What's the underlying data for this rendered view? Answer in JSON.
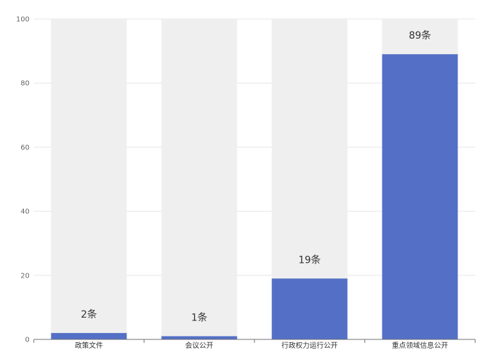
{
  "chart_data": {
    "type": "bar",
    "title": "",
    "xlabel": "",
    "ylabel": "",
    "categories": [
      "政策文件",
      "会议公开",
      "行政权力运行公开",
      "重点领域信息公开"
    ],
    "values": [
      2,
      1,
      19,
      89
    ],
    "data_labels": [
      "2条",
      "1条",
      "19条",
      "89条"
    ],
    "background_values": [
      100,
      100,
      100,
      100
    ],
    "ylim": [
      0,
      100
    ],
    "yticks": [
      "0",
      "20",
      "40",
      "60",
      "80",
      "100"
    ],
    "grid": true,
    "legend": "none",
    "colors": {
      "bar": "#5470c6",
      "bar_background": "#efefef",
      "grid": "#e6e6e6",
      "axis": "#6e7079"
    }
  }
}
